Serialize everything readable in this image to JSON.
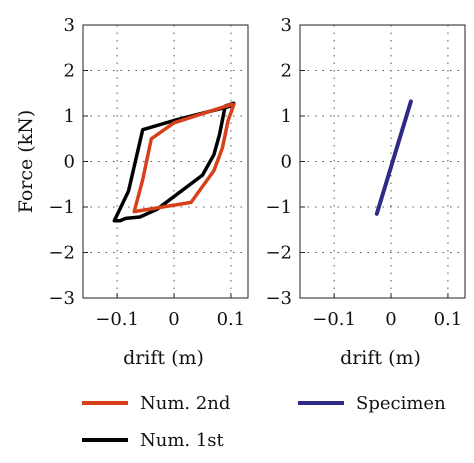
{
  "chart_data": [
    {
      "type": "line",
      "panel": "left",
      "xlabel": "drift (m)",
      "ylabel": "Force (kN)",
      "xticks": [
        "−0.1",
        "0",
        "0.1"
      ],
      "yticks": [
        "3",
        "2",
        "1",
        "0",
        "−1",
        "−2",
        "−3"
      ],
      "xlim": [
        -0.16,
        0.13
      ],
      "ylim": [
        -3,
        3
      ],
      "grid": true,
      "series": [
        {
          "name": "Num. 1st",
          "color": "#000000",
          "x": [
            -0.105,
            -0.08,
            -0.055,
            0.0,
            0.1,
            0.105,
            0.09,
            0.08,
            0.07,
            0.05,
            -0.03,
            -0.06,
            -0.085,
            -0.095,
            -0.105
          ],
          "y": [
            -1.3,
            -0.65,
            0.7,
            0.9,
            1.22,
            1.28,
            1.22,
            0.6,
            0.15,
            -0.3,
            -1.05,
            -1.22,
            -1.25,
            -1.3,
            -1.3
          ]
        },
        {
          "name": "Num. 2nd",
          "color": "#d8401c",
          "x": [
            -0.07,
            -0.055,
            -0.04,
            0.0,
            0.1,
            0.105,
            0.095,
            0.085,
            0.07,
            0.03,
            -0.07
          ],
          "y": [
            -1.1,
            -0.4,
            0.5,
            0.85,
            1.25,
            1.25,
            0.9,
            0.3,
            -0.2,
            -0.9,
            -1.1
          ]
        }
      ]
    },
    {
      "type": "line",
      "panel": "right",
      "xlabel": "drift (m)",
      "ylabel": "",
      "xticks": [
        "−0.1",
        "0",
        "0.1"
      ],
      "yticks": [
        "3",
        "2",
        "1",
        "0",
        "−1",
        "−2",
        "−3"
      ],
      "xlim": [
        -0.16,
        0.13
      ],
      "ylim": [
        -3,
        3
      ],
      "grid": true,
      "series": [
        {
          "name": "Specimen",
          "color": "#2e2a86",
          "x": [
            -0.025,
            0.035
          ],
          "y": [
            -1.15,
            1.32
          ]
        }
      ]
    }
  ],
  "legend": [
    {
      "label": "Num. 2nd",
      "color": "#d8401c"
    },
    {
      "label": "Specimen",
      "color": "#2e2a86"
    },
    {
      "label": "Num. 1st",
      "color": "#000000"
    }
  ]
}
